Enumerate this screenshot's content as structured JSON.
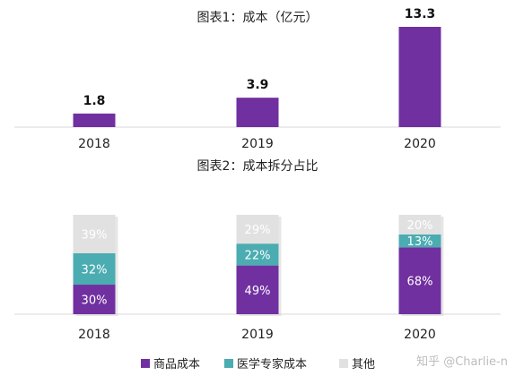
{
  "watermark": "知乎 @Charlie-n",
  "colors": {
    "goods": "#7030a0",
    "expert": "#4bacb1",
    "other": "#e1e1e1",
    "axis": "#d9d9d9"
  },
  "chart_data": [
    {
      "type": "bar",
      "title": "图表1：成本（亿元）",
      "categories": [
        "2018",
        "2019",
        "2020"
      ],
      "values": [
        1.8,
        3.9,
        13.3
      ],
      "value_labels": [
        "1.8",
        "3.9",
        "13.3"
      ],
      "ylim": [
        0,
        13.3
      ],
      "grid": false,
      "legend": "none"
    },
    {
      "type": "bar",
      "stacked": true,
      "title": "图表2：成本拆分占比",
      "categories": [
        "2018",
        "2019",
        "2020"
      ],
      "series": [
        {
          "name": "商品成本",
          "color": "#7030a0",
          "values": [
            30,
            49,
            68
          ],
          "labels": [
            "30%",
            "49%",
            "68%"
          ]
        },
        {
          "name": "医学专家成本",
          "color": "#4bacb1",
          "values": [
            32,
            22,
            13
          ],
          "labels": [
            "32%",
            "22%",
            "13%"
          ]
        },
        {
          "name": "其他",
          "color": "#e1e1e1",
          "values": [
            39,
            29,
            20
          ],
          "labels": [
            "39%",
            "29%",
            "20%"
          ]
        }
      ],
      "ylim": [
        0,
        100
      ],
      "grid": false,
      "legend": "bottom"
    }
  ]
}
